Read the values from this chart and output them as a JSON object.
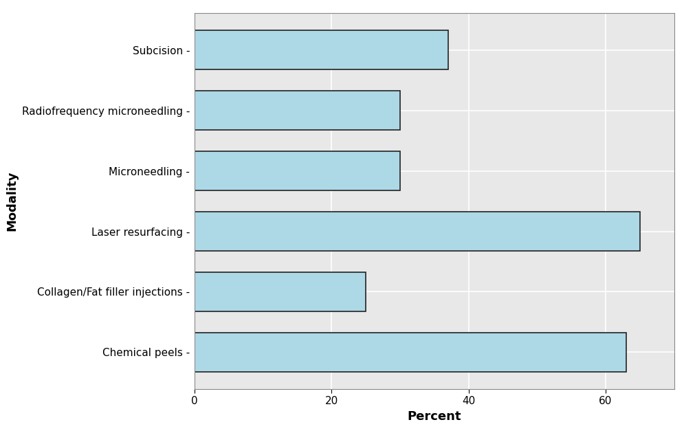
{
  "categories": [
    "Chemical peels",
    "Collagen/Fat filler injections",
    "Laser resurfacing",
    "Microneedling",
    "Radiofrequency microneedling",
    "Subcision"
  ],
  "values": [
    63,
    25,
    65,
    30,
    30,
    37
  ],
  "bar_color": "#add8e6",
  "bar_edge_color": "#222222",
  "bar_linewidth": 1.2,
  "xlabel": "Percent",
  "ylabel": "Modality",
  "xlim": [
    0,
    70
  ],
  "xticks": [
    0,
    20,
    40,
    60
  ],
  "plot_bg_color": "#e8e8e8",
  "fig_bg_color": "#ffffff",
  "xlabel_fontsize": 13,
  "ylabel_fontsize": 13,
  "tick_fontsize": 11,
  "label_fontsize": 11,
  "xlabel_fontweight": "bold",
  "ylabel_fontweight": "bold",
  "bar_height": 0.65,
  "grid_color": "#ffffff",
  "grid_linewidth": 1.2,
  "frame_color": "#888888",
  "frame_linewidth": 0.8
}
